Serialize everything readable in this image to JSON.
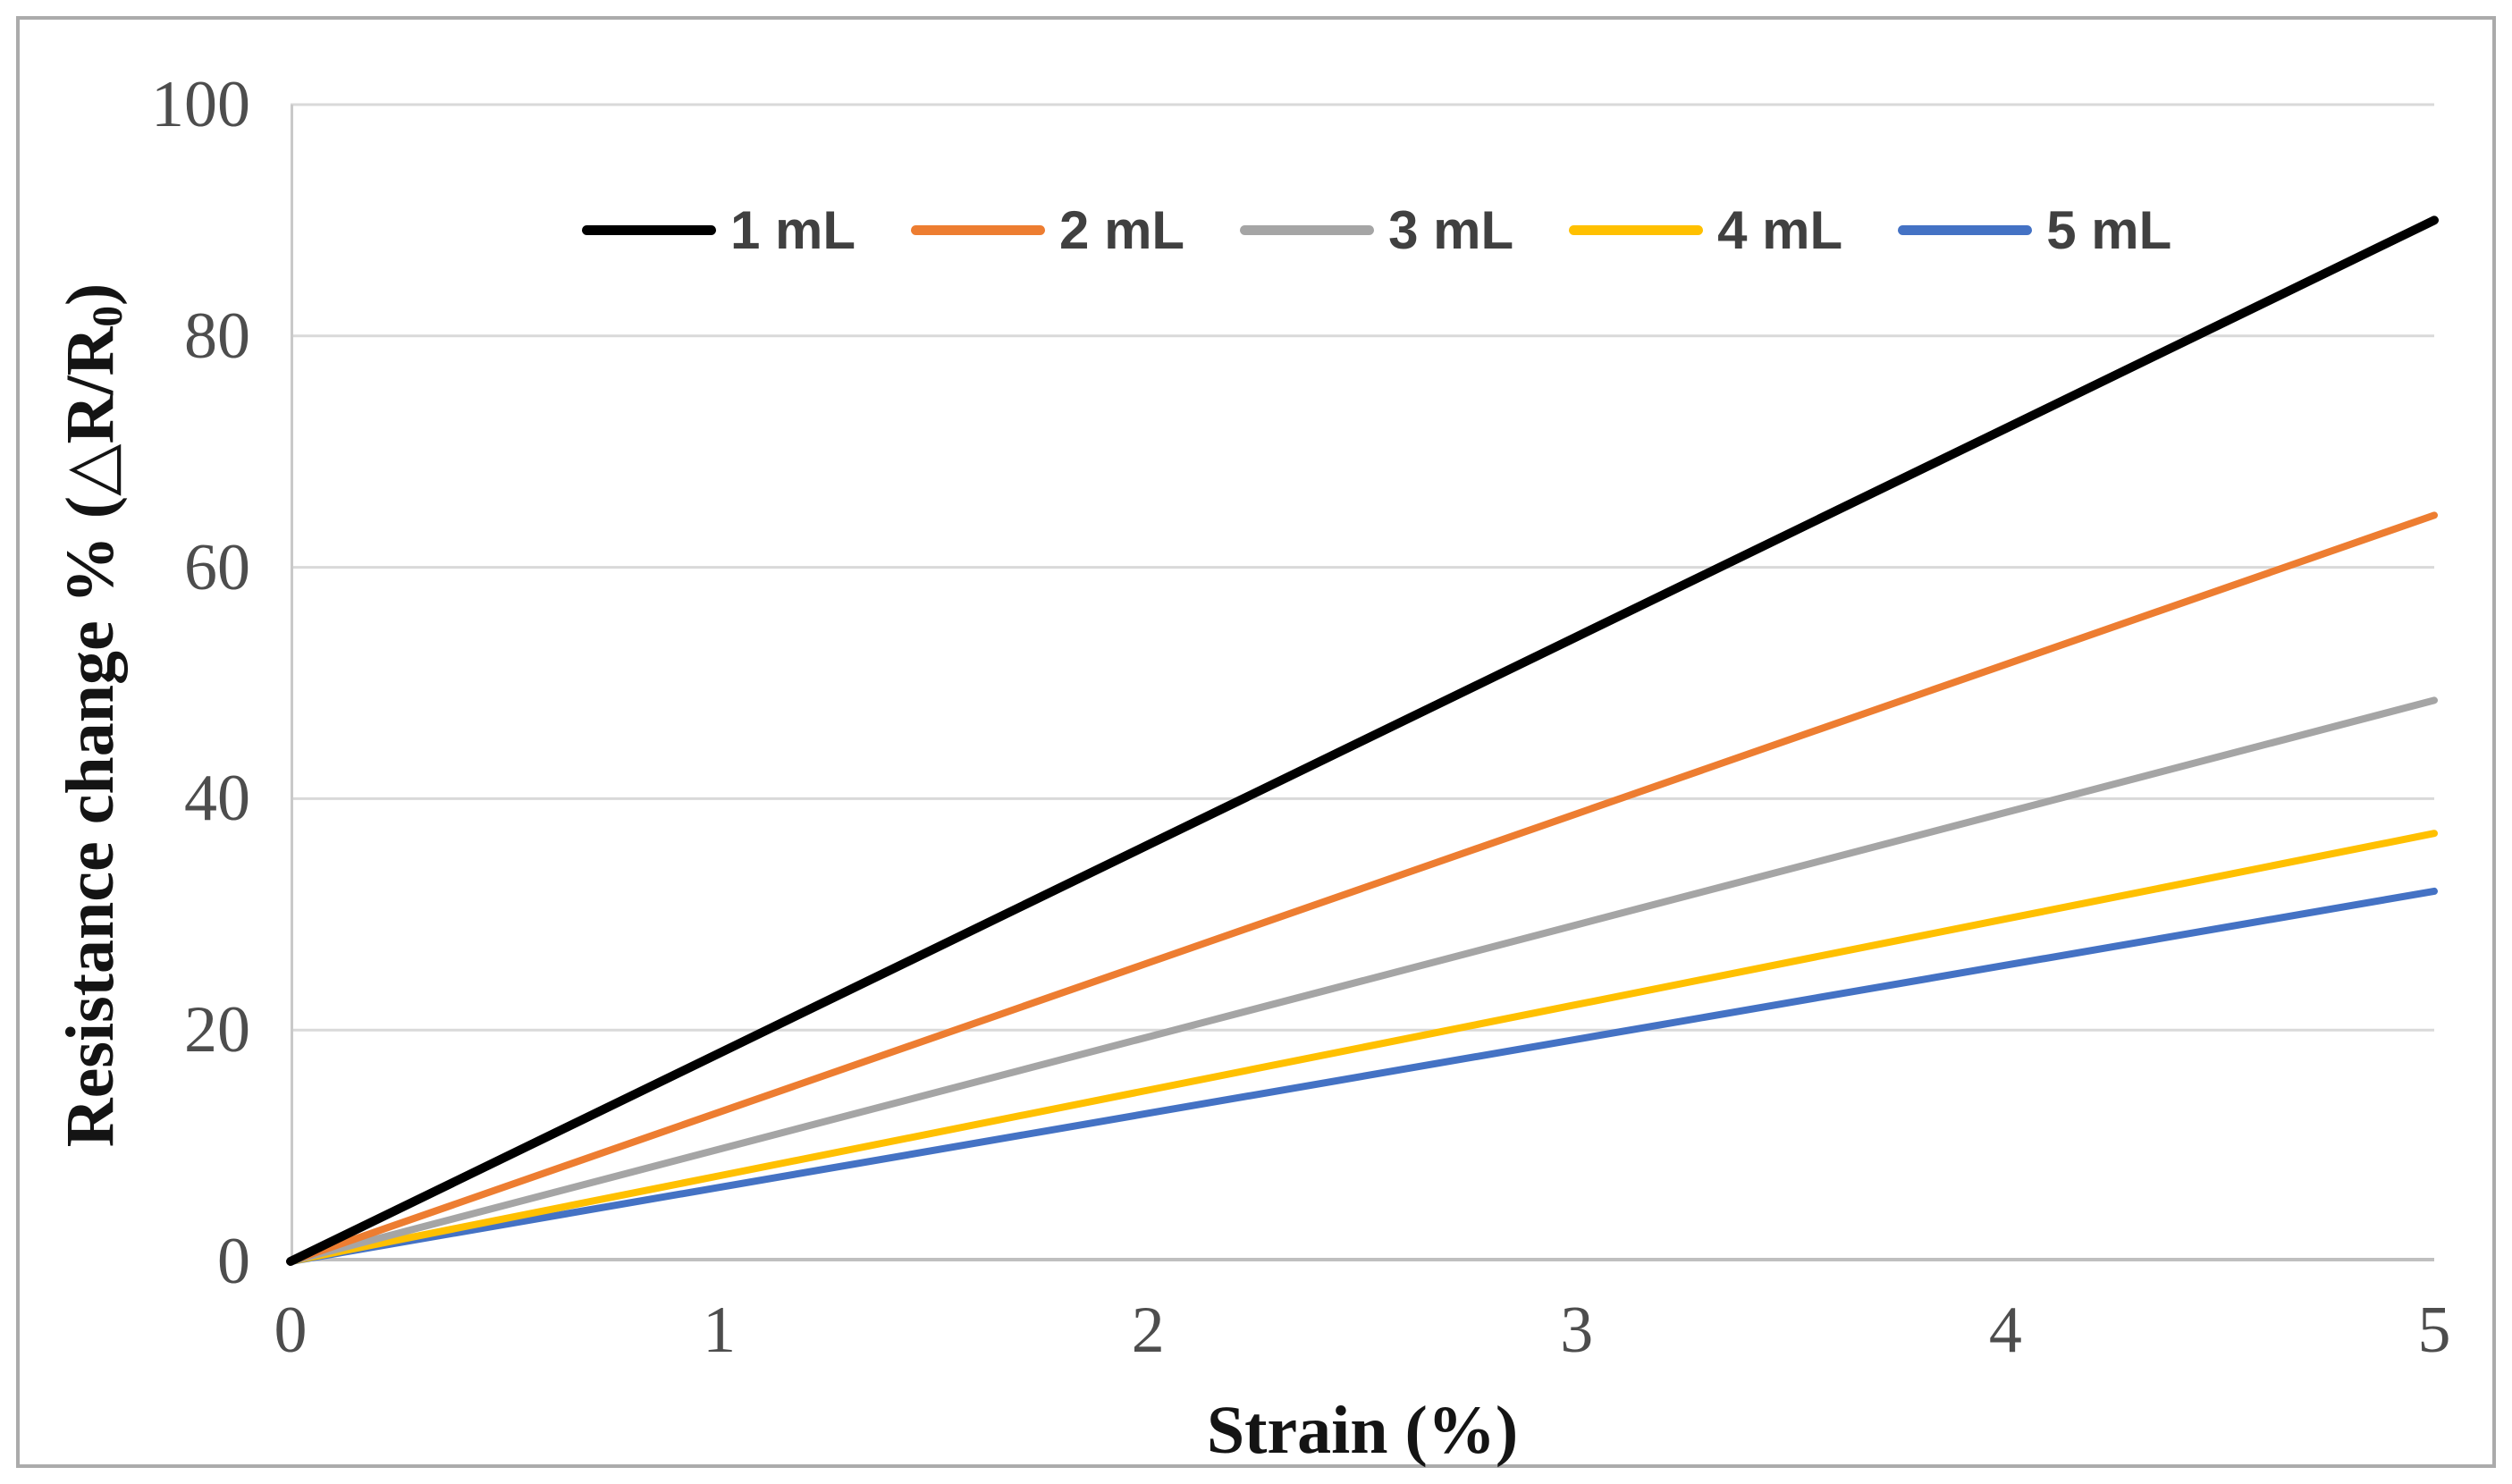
{
  "chart_data": {
    "type": "line",
    "title": "",
    "xlabel": "Strain (%)",
    "ylabel": "Resistance change % (△R/R₀)",
    "ylabel_parts": {
      "main": "Resistance change % (△R/R",
      "sub": "0",
      "close": ")"
    },
    "x": [
      0,
      1,
      2,
      3,
      4,
      5
    ],
    "series": [
      {
        "name": "1 mL",
        "color": "#000000",
        "values": [
          0,
          18,
          36,
          54,
          72,
          90
        ]
      },
      {
        "name": "2 mL",
        "color": "#ED7D31",
        "values": [
          0,
          12.9,
          25.8,
          38.7,
          51.6,
          64.5
        ]
      },
      {
        "name": "3 mL",
        "color": "#A5A5A5",
        "values": [
          0,
          9.7,
          19.4,
          29.1,
          38.8,
          48.5
        ]
      },
      {
        "name": "4 mL",
        "color": "#FFC000",
        "values": [
          0,
          7.4,
          14.8,
          22.2,
          29.6,
          37
        ]
      },
      {
        "name": "5 mL",
        "color": "#4472C4",
        "values": [
          0,
          6.4,
          12.8,
          19.2,
          25.6,
          32
        ]
      }
    ],
    "xlim": [
      0,
      5
    ],
    "ylim": [
      0,
      100
    ],
    "x_ticks": [
      "0",
      "1",
      "2",
      "3",
      "4",
      "5"
    ],
    "y_ticks": [
      "0",
      "20",
      "40",
      "60",
      "80",
      "100"
    ],
    "grid": "horizontal",
    "legend_position": "top-center"
  },
  "style_colors": {
    "gridline": "#D9D9D9",
    "axis_line": "#BFBFBF",
    "tick_label": "#4d4d4d",
    "axis_title": "#141414",
    "legend_label": "#404040",
    "figure_border": "#ABABAB",
    "background": "#FFFFFF"
  }
}
